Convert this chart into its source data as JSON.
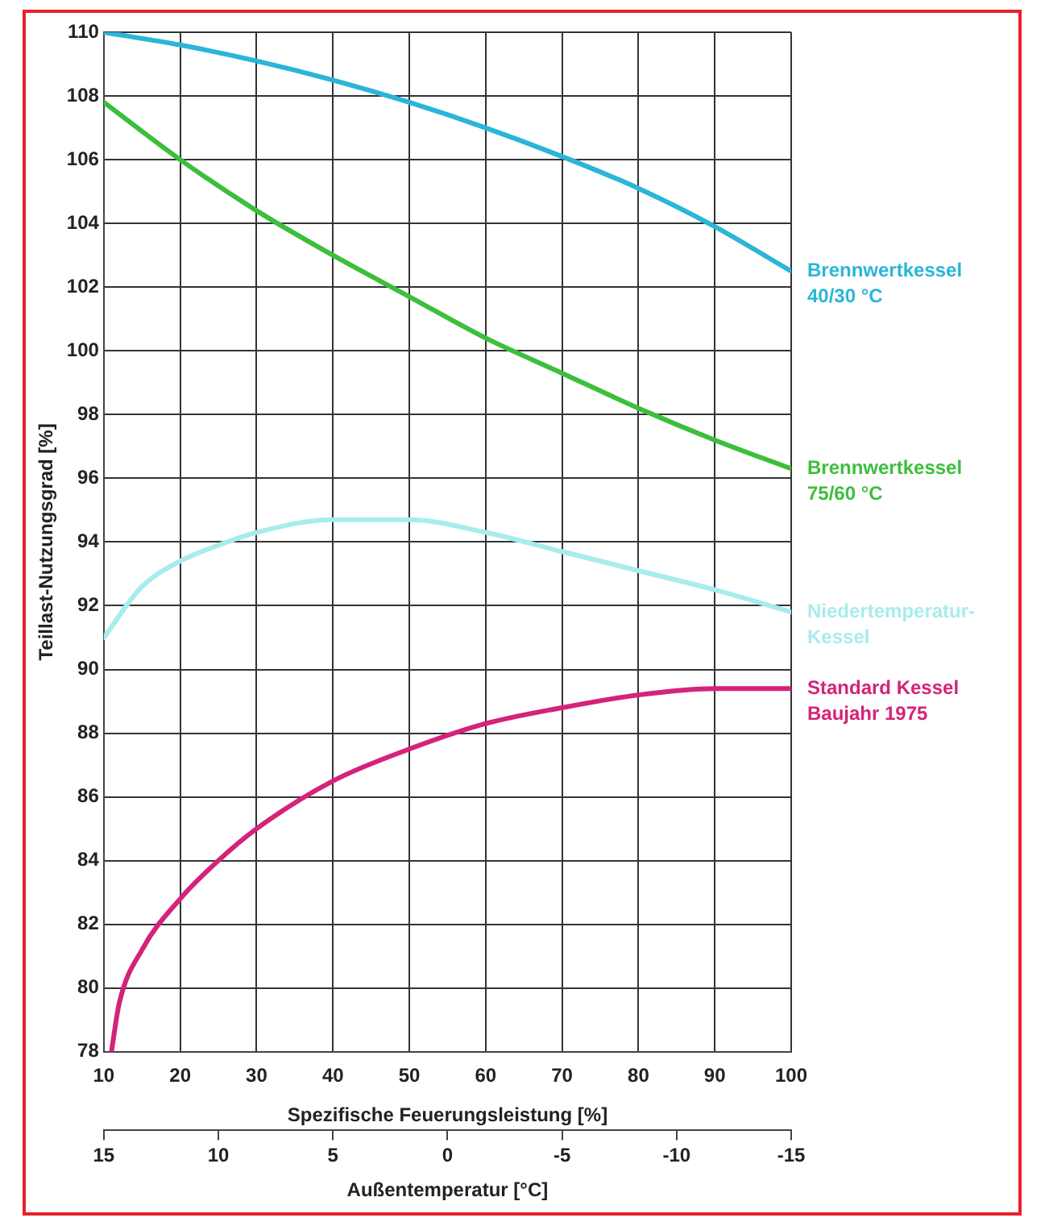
{
  "chart_data": {
    "type": "line",
    "xlabel": "Spezifische Feuerungsleistung [%]",
    "ylabel": "Teillast-Nutzungsgrad [%]",
    "x2label": "Außentemperatur [°C]",
    "xlim": [
      10,
      100
    ],
    "xticks": [
      10,
      20,
      30,
      40,
      50,
      60,
      70,
      80,
      90,
      100
    ],
    "x2lim": [
      15,
      -15
    ],
    "x2ticks": [
      15,
      10,
      5,
      0,
      -5,
      -10,
      -15
    ],
    "ylim": [
      78,
      110
    ],
    "yticks": [
      78,
      80,
      82,
      84,
      86,
      88,
      90,
      92,
      94,
      96,
      98,
      100,
      102,
      104,
      106,
      108,
      110
    ],
    "grid": true,
    "legend": false,
    "marker": "none",
    "line_style": "solid",
    "series": [
      {
        "name": "Brennwertkessel 40/30 °C",
        "color": "#2bb5d8",
        "x": [
          10,
          20,
          30,
          40,
          50,
          60,
          70,
          80,
          90,
          100
        ],
        "values": [
          110,
          109.6,
          109.1,
          108.5,
          107.8,
          107,
          106.1,
          105.1,
          103.9,
          102.5
        ]
      },
      {
        "name": "Brennwertkessel 75/60 °C",
        "color": "#3cbf3c",
        "x": [
          10,
          20,
          30,
          40,
          50,
          60,
          70,
          80,
          90,
          100
        ],
        "values": [
          107.8,
          106,
          104.4,
          103,
          101.7,
          100.4,
          99.3,
          98.2,
          97.2,
          96.3
        ]
      },
      {
        "name": "Niedertemperatur-Kessel",
        "color": "#a8ecec",
        "x": [
          10,
          15,
          20,
          25,
          30,
          40,
          50,
          60,
          70,
          80,
          90,
          100
        ],
        "values": [
          91,
          92.6,
          93.4,
          93.9,
          94.3,
          94.7,
          94.7,
          94.3,
          93.7,
          93.1,
          92.5,
          91.8
        ]
      },
      {
        "name": "Standard Kessel Baujahr 1975",
        "color": "#d4237a",
        "x": [
          11,
          12,
          15,
          20,
          25,
          30,
          40,
          50,
          60,
          70,
          80,
          90,
          100
        ],
        "values": [
          78,
          79.5,
          81.2,
          82.8,
          84,
          85,
          86.5,
          87.5,
          88.3,
          88.8,
          89.2,
          89.4,
          89.4
        ]
      }
    ]
  }
}
